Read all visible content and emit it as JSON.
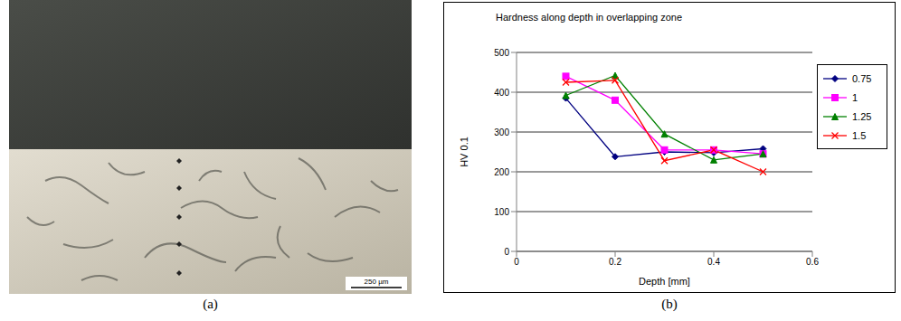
{
  "captions": [
    "(a)",
    "(b)"
  ],
  "micrograph": {
    "scale_bar": "250 µm"
  },
  "chart_data": {
    "type": "line",
    "title": "Hardness along depth in overlapping zone",
    "x_label": "Depth [mm]",
    "y_label": "HV 0.1",
    "x": [
      0.1,
      0.2,
      0.3,
      0.4,
      0.5
    ],
    "xlim": [
      0,
      0.6
    ],
    "xticks": [
      0,
      0.2,
      0.4,
      0.6
    ],
    "ylim": [
      0,
      500
    ],
    "yticks": [
      0,
      100,
      200,
      300,
      400,
      500
    ],
    "grid": true,
    "legend": "right",
    "series": [
      {
        "name": "0.75",
        "color": "#000080",
        "marker": "diamond",
        "values": [
          385,
          238,
          250,
          248,
          258
        ]
      },
      {
        "name": "1",
        "color": "#ff00ff",
        "marker": "square",
        "values": [
          440,
          380,
          255,
          255,
          245
        ]
      },
      {
        "name": "1.25",
        "color": "#008000",
        "marker": "triangle",
        "values": [
          392,
          442,
          295,
          230,
          245
        ]
      },
      {
        "name": "1.5",
        "color": "#ff0000",
        "marker": "x",
        "values": [
          425,
          430,
          228,
          255,
          200
        ]
      }
    ]
  }
}
